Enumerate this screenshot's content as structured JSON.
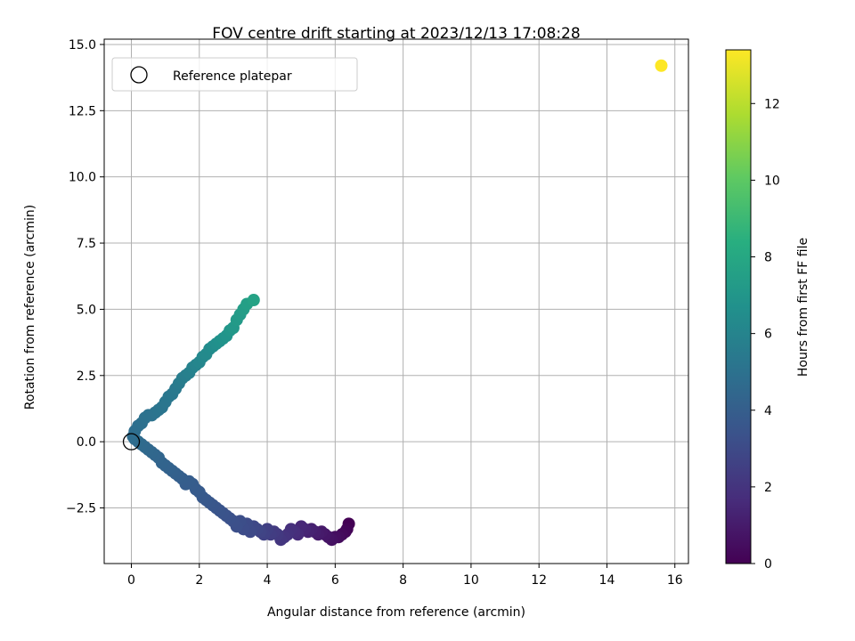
{
  "chart_data": {
    "type": "scatter",
    "title": "FOV centre drift starting at 2023/12/13 17:08:28",
    "xlabel": "Angular distance from reference (arcmin)",
    "ylabel": "Rotation from reference (arcmin)",
    "xlim": [
      -0.8,
      16.4
    ],
    "ylim": [
      -4.6,
      15.2
    ],
    "xticks": [
      0,
      2,
      4,
      6,
      8,
      10,
      12,
      14,
      16
    ],
    "yticks": [
      -2.5,
      0.0,
      2.5,
      5.0,
      7.5,
      10.0,
      12.5,
      15.0
    ],
    "xtick_labels": [
      "0",
      "2",
      "4",
      "6",
      "8",
      "10",
      "12",
      "14",
      "16"
    ],
    "ytick_labels": [
      "−2.5",
      "0.0",
      "2.5",
      "5.0",
      "7.5",
      "10.0",
      "12.5",
      "15.0"
    ],
    "grid": true,
    "legend": {
      "position": "top-left",
      "entries": [
        "Reference platepar"
      ]
    },
    "reference_point": {
      "label": "Reference platepar",
      "x": 0,
      "y": 0
    },
    "colorbar": {
      "label": "Hours from first FF file",
      "colormap": "viridis",
      "range": [
        0,
        13.4
      ],
      "ticks": [
        0,
        2,
        4,
        6,
        8,
        10,
        12
      ],
      "tick_labels": [
        "0",
        "2",
        "4",
        "6",
        "8",
        "10",
        "12"
      ]
    },
    "series": [
      {
        "x": [
          6.4,
          6.35,
          6.3,
          6.2,
          6.1,
          6.0,
          5.9,
          5.8,
          5.7,
          5.6,
          5.5,
          5.4,
          5.3,
          5.2,
          5.1,
          5.0,
          4.9,
          4.8,
          4.7,
          4.6,
          4.5,
          4.4,
          4.3,
          4.2,
          4.1,
          4.0,
          3.9,
          3.8,
          3.7,
          3.6,
          3.5,
          3.4,
          3.3,
          3.2,
          3.1,
          3.0,
          2.9,
          2.8,
          2.7,
          2.6,
          2.5,
          2.4,
          2.3,
          2.2,
          2.1,
          2.0,
          1.9,
          1.8,
          1.7,
          1.6,
          1.5,
          1.4,
          1.3,
          1.2,
          1.1,
          1.0,
          0.9,
          0.8,
          0.7,
          0.6,
          0.5,
          0.4,
          0.3,
          0.2,
          0.1,
          0.05,
          0.1,
          0.2,
          0.3,
          0.4,
          0.5,
          0.6,
          0.7,
          0.8,
          0.9,
          1.0,
          1.1,
          1.2,
          1.3,
          1.4,
          1.5,
          1.6,
          1.7,
          1.8,
          1.9,
          2.0,
          2.1,
          2.2,
          2.3,
          2.4,
          2.5,
          2.6,
          2.7,
          2.8,
          2.9,
          3.0,
          3.1,
          3.2,
          3.3,
          3.4,
          3.6,
          15.6
        ],
        "y": [
          -3.1,
          -3.3,
          -3.4,
          -3.5,
          -3.6,
          -3.6,
          -3.7,
          -3.6,
          -3.5,
          -3.4,
          -3.5,
          -3.4,
          -3.3,
          -3.4,
          -3.3,
          -3.2,
          -3.5,
          -3.4,
          -3.3,
          -3.5,
          -3.6,
          -3.7,
          -3.5,
          -3.4,
          -3.5,
          -3.3,
          -3.5,
          -3.4,
          -3.3,
          -3.2,
          -3.4,
          -3.1,
          -3.3,
          -3.0,
          -3.2,
          -3.0,
          -2.9,
          -2.8,
          -2.7,
          -2.6,
          -2.5,
          -2.4,
          -2.3,
          -2.2,
          -2.1,
          -1.9,
          -1.8,
          -1.6,
          -1.5,
          -1.6,
          -1.4,
          -1.3,
          -1.2,
          -1.1,
          -1.0,
          -0.9,
          -0.8,
          -0.6,
          -0.5,
          -0.4,
          -0.3,
          -0.2,
          -0.1,
          0.0,
          0.1,
          0.2,
          0.4,
          0.6,
          0.7,
          0.9,
          1.0,
          1.0,
          1.1,
          1.2,
          1.3,
          1.5,
          1.7,
          1.8,
          2.0,
          2.2,
          2.4,
          2.5,
          2.6,
          2.8,
          2.9,
          3.0,
          3.2,
          3.3,
          3.5,
          3.6,
          3.7,
          3.8,
          3.9,
          4.0,
          4.2,
          4.3,
          4.6,
          4.8,
          5.0,
          5.2,
          5.35,
          14.2
        ],
        "hours": [
          0.0,
          0.1,
          0.2,
          0.3,
          0.4,
          0.5,
          0.6,
          0.7,
          0.8,
          0.9,
          1.0,
          1.1,
          1.2,
          1.3,
          1.4,
          1.5,
          1.6,
          1.7,
          1.8,
          1.9,
          2.0,
          2.1,
          2.2,
          2.3,
          2.4,
          2.5,
          2.6,
          2.7,
          2.8,
          2.9,
          3.0,
          3.05,
          3.1,
          3.15,
          3.2,
          3.25,
          3.3,
          3.35,
          3.4,
          3.45,
          3.5,
          3.55,
          3.6,
          3.65,
          3.7,
          3.75,
          3.8,
          3.85,
          3.9,
          3.95,
          4.0,
          4.05,
          4.1,
          4.15,
          4.2,
          4.25,
          4.3,
          4.35,
          4.4,
          4.45,
          4.5,
          4.55,
          4.6,
          4.65,
          4.7,
          4.75,
          4.8,
          4.85,
          4.9,
          4.95,
          5.0,
          5.05,
          5.1,
          5.15,
          5.2,
          5.25,
          5.3,
          5.35,
          5.4,
          5.5,
          5.6,
          5.7,
          5.8,
          5.9,
          6.0,
          6.1,
          6.2,
          6.3,
          6.4,
          6.5,
          6.6,
          6.7,
          6.8,
          6.9,
          7.0,
          7.1,
          7.2,
          7.3,
          7.4,
          7.5,
          7.7,
          13.4
        ]
      }
    ]
  }
}
